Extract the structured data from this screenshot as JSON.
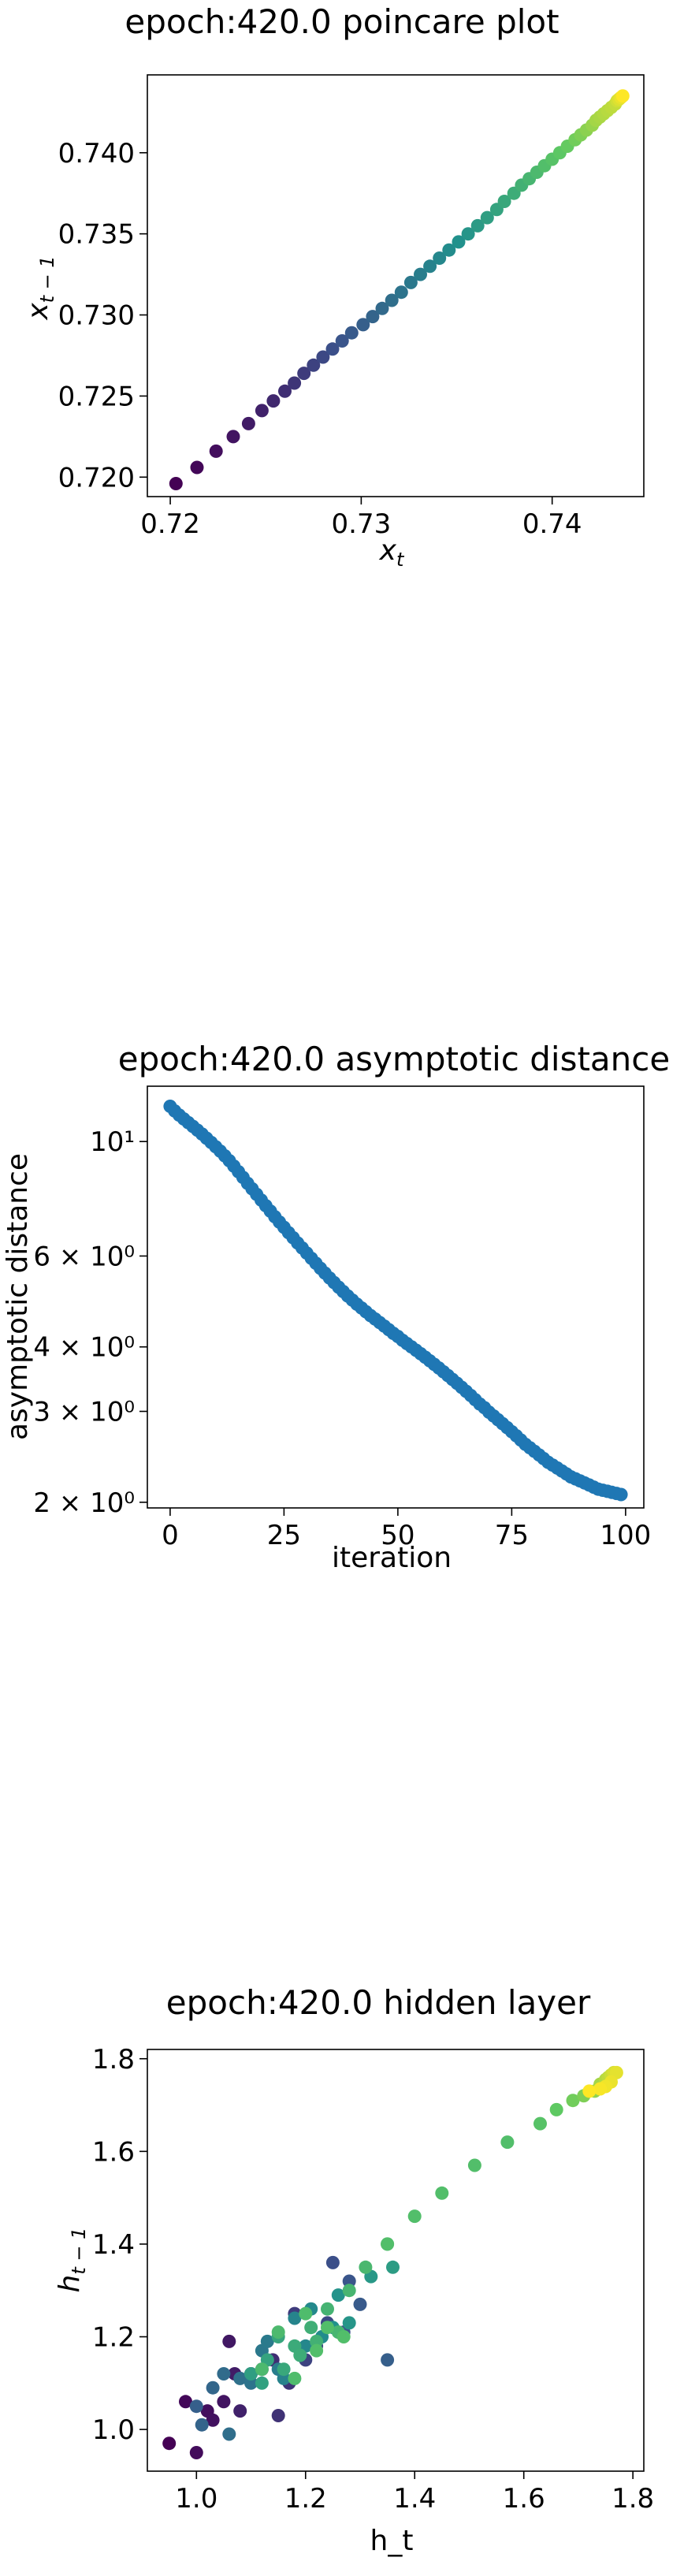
{
  "chart_data": [
    {
      "type": "scatter",
      "title": "epoch:420.0 poincare plot",
      "xlabel": "x_t",
      "ylabel": "x_{t-1}",
      "xlim": [
        0.7188,
        0.7448
      ],
      "ylim": [
        0.7188,
        0.7448
      ],
      "xticks": [
        0.72,
        0.73,
        0.74
      ],
      "xtick_labels": [
        "0.72",
        "0.73",
        "0.74"
      ],
      "yticks": [
        0.72,
        0.725,
        0.73,
        0.735,
        0.74
      ],
      "ytick_labels": [
        "0.720",
        "0.725",
        "0.730",
        "0.735",
        "0.740"
      ],
      "colormap": "viridis",
      "grid": false,
      "series": [
        {
          "x": [
            0.7203,
            0.7214,
            0.7224,
            0.7233,
            0.7241,
            0.7248,
            0.7254,
            0.726,
            0.7265,
            0.727,
            0.7275,
            0.728,
            0.7285,
            0.729,
            0.7295,
            0.7301,
            0.7306,
            0.7311,
            0.7316,
            0.7321,
            0.7326,
            0.7331,
            0.7336,
            0.7341,
            0.7346,
            0.7351,
            0.7356,
            0.7361,
            0.7366,
            0.7371,
            0.7375,
            0.738,
            0.7384,
            0.7388,
            0.7392,
            0.7396,
            0.74,
            0.7404,
            0.7408,
            0.7412,
            0.7415,
            0.7418,
            0.7421,
            0.7423,
            0.7425,
            0.7427,
            0.7429,
            0.7431,
            0.7433,
            0.7434,
            0.7435,
            0.7436,
            0.7437
          ],
          "y": [
            0.7196,
            0.7206,
            0.7216,
            0.7225,
            0.7233,
            0.7241,
            0.7247,
            0.7253,
            0.7258,
            0.7264,
            0.7269,
            0.7274,
            0.7279,
            0.7284,
            0.7289,
            0.7294,
            0.7299,
            0.7304,
            0.7309,
            0.7314,
            0.732,
            0.7325,
            0.733,
            0.7335,
            0.734,
            0.7345,
            0.735,
            0.7355,
            0.736,
            0.7365,
            0.737,
            0.7375,
            0.738,
            0.7384,
            0.7388,
            0.7392,
            0.7396,
            0.74,
            0.7404,
            0.7408,
            0.7411,
            0.7414,
            0.7417,
            0.742,
            0.7422,
            0.7424,
            0.7426,
            0.7428,
            0.743,
            0.7432,
            0.7433,
            0.7434,
            0.7435
          ],
          "color_values": [
            0.0,
            0.02,
            0.04,
            0.06,
            0.08,
            0.1,
            0.12,
            0.14,
            0.16,
            0.18,
            0.2,
            0.22,
            0.24,
            0.26,
            0.28,
            0.3,
            0.32,
            0.34,
            0.36,
            0.38,
            0.4,
            0.42,
            0.44,
            0.46,
            0.48,
            0.5,
            0.52,
            0.54,
            0.56,
            0.58,
            0.6,
            0.62,
            0.64,
            0.66,
            0.68,
            0.7,
            0.72,
            0.74,
            0.76,
            0.78,
            0.8,
            0.82,
            0.84,
            0.86,
            0.87,
            0.88,
            0.89,
            0.9,
            0.91,
            0.93,
            0.95,
            0.97,
            1.0
          ]
        }
      ]
    },
    {
      "type": "scatter",
      "title": "epoch:420.0 asymptotic distance",
      "xlabel": "iteration",
      "ylabel": "asymptotic distance",
      "xlim": [
        -5,
        104
      ],
      "ylim": [
        1.95,
        12.8
      ],
      "yscale": "log",
      "xticks": [
        0,
        25,
        50,
        75,
        100
      ],
      "xtick_labels": [
        "0",
        "25",
        "50",
        "75",
        "100"
      ],
      "yticks": [
        2,
        3,
        4,
        6,
        10
      ],
      "ytick_labels": [
        "2 × 10⁰",
        "3 × 10⁰",
        "4 × 10⁰",
        "6 × 10⁰",
        "10¹"
      ],
      "color": "#1f77b4",
      "grid": false,
      "series": [
        {
          "x": [
            0,
            1,
            2,
            3,
            4,
            5,
            6,
            7,
            8,
            9,
            10,
            11,
            12,
            13,
            14,
            15,
            16,
            17,
            18,
            19,
            20,
            21,
            22,
            23,
            24,
            25,
            26,
            27,
            28,
            29,
            30,
            31,
            32,
            33,
            34,
            35,
            36,
            37,
            38,
            39,
            40,
            41,
            42,
            43,
            44,
            45,
            46,
            47,
            48,
            49,
            50,
            51,
            52,
            53,
            54,
            55,
            56,
            57,
            58,
            59,
            60,
            61,
            62,
            63,
            64,
            65,
            66,
            67,
            68,
            69,
            70,
            71,
            72,
            73,
            74,
            75,
            76,
            77,
            78,
            79,
            80,
            81,
            82,
            83,
            84,
            85,
            86,
            87,
            88,
            89,
            90,
            91,
            92,
            93,
            94,
            95,
            96,
            97,
            98,
            99
          ],
          "y": [
            11.7,
            11.46,
            11.25,
            11.06,
            10.88,
            10.7,
            10.52,
            10.34,
            10.15,
            9.96,
            9.77,
            9.58,
            9.38,
            9.18,
            8.96,
            8.74,
            8.52,
            8.3,
            8.1,
            7.9,
            7.7,
            7.51,
            7.33,
            7.15,
            6.98,
            6.82,
            6.66,
            6.51,
            6.36,
            6.22,
            6.08,
            5.94,
            5.81,
            5.68,
            5.56,
            5.44,
            5.33,
            5.22,
            5.12,
            5.02,
            4.93,
            4.84,
            4.76,
            4.68,
            4.6,
            4.53,
            4.46,
            4.39,
            4.32,
            4.25,
            4.19,
            4.12,
            4.06,
            4.0,
            3.94,
            3.88,
            3.82,
            3.76,
            3.7,
            3.64,
            3.58,
            3.52,
            3.46,
            3.4,
            3.34,
            3.28,
            3.22,
            3.16,
            3.1,
            3.05,
            2.99,
            2.94,
            2.89,
            2.84,
            2.79,
            2.74,
            2.69,
            2.64,
            2.59,
            2.55,
            2.51,
            2.47,
            2.43,
            2.39,
            2.36,
            2.33,
            2.3,
            2.27,
            2.24,
            2.22,
            2.2,
            2.18,
            2.16,
            2.14,
            2.12,
            2.11,
            2.1,
            2.09,
            2.08,
            2.07
          ]
        }
      ]
    },
    {
      "type": "scatter",
      "title": "epoch:420.0 hidden layer",
      "xlabel": "h_t",
      "ylabel": "h_{t-1}",
      "xlim": [
        0.91,
        1.82
      ],
      "ylim": [
        0.91,
        1.82
      ],
      "xticks": [
        1.0,
        1.2,
        1.4,
        1.6,
        1.8
      ],
      "xtick_labels": [
        "1.0",
        "1.2",
        "1.4",
        "1.6",
        "1.8"
      ],
      "yticks": [
        1.0,
        1.2,
        1.4,
        1.6,
        1.8
      ],
      "ytick_labels": [
        "1.0",
        "1.2",
        "1.4",
        "1.6",
        "1.8"
      ],
      "colormap": "viridis",
      "grid": false,
      "series": [
        {
          "x": [
            0.95,
            0.98,
            1.0,
            1.02,
            1.03,
            1.05,
            1.06,
            1.07,
            1.08,
            1.1,
            1.12,
            1.14,
            1.15,
            1.17,
            1.18,
            1.2,
            1.22,
            1.24,
            1.25,
            1.27,
            1.28,
            1.3,
            1.35,
            1.0,
            1.01,
            1.03,
            1.05,
            1.06,
            1.08,
            1.1,
            1.12,
            1.13,
            1.15,
            1.16,
            1.18,
            1.2,
            1.21,
            1.23,
            1.25,
            1.26,
            1.28,
            1.32,
            1.36,
            1.1,
            1.12,
            1.13,
            1.15,
            1.16,
            1.18,
            1.19,
            1.21,
            1.22,
            1.24,
            1.26,
            1.28,
            1.31,
            1.35,
            1.12,
            1.15,
            1.18,
            1.2,
            1.22,
            1.24,
            1.27,
            1.35,
            1.4,
            1.45,
            1.51,
            1.57,
            1.63,
            1.66,
            1.69,
            1.71,
            1.73,
            1.74,
            1.75,
            1.755,
            1.76,
            1.765,
            1.77,
            1.76,
            1.75,
            1.74,
            1.72
          ],
          "y": [
            0.97,
            1.06,
            0.95,
            1.04,
            1.02,
            1.06,
            1.19,
            1.12,
            1.04,
            1.12,
            1.13,
            1.15,
            1.03,
            1.1,
            1.25,
            1.15,
            1.18,
            1.23,
            1.36,
            1.21,
            1.32,
            1.27,
            1.15,
            1.05,
            1.01,
            1.09,
            1.12,
            0.99,
            1.11,
            1.1,
            1.17,
            1.19,
            1.13,
            1.11,
            1.24,
            1.18,
            1.26,
            1.2,
            1.22,
            1.29,
            1.23,
            1.33,
            1.35,
            1.12,
            1.1,
            1.15,
            1.2,
            1.13,
            1.18,
            1.16,
            1.22,
            1.19,
            1.26,
            1.21,
            1.3,
            1.35,
            1.4,
            1.13,
            1.21,
            1.11,
            1.25,
            1.17,
            1.22,
            1.2,
            1.4,
            1.46,
            1.51,
            1.57,
            1.62,
            1.66,
            1.69,
            1.71,
            1.72,
            1.73,
            1.745,
            1.755,
            1.76,
            1.765,
            1.77,
            1.77,
            1.75,
            1.74,
            1.735,
            1.73
          ],
          "color_values": [
            0.0,
            0.02,
            0.03,
            0.04,
            0.05,
            0.06,
            0.07,
            0.08,
            0.1,
            0.12,
            0.13,
            0.14,
            0.15,
            0.16,
            0.18,
            0.2,
            0.21,
            0.22,
            0.24,
            0.25,
            0.26,
            0.28,
            0.3,
            0.3,
            0.32,
            0.33,
            0.35,
            0.36,
            0.37,
            0.38,
            0.4,
            0.41,
            0.42,
            0.44,
            0.45,
            0.46,
            0.47,
            0.48,
            0.5,
            0.51,
            0.52,
            0.53,
            0.55,
            0.56,
            0.57,
            0.58,
            0.59,
            0.6,
            0.61,
            0.62,
            0.63,
            0.64,
            0.65,
            0.66,
            0.66,
            0.67,
            0.67,
            0.68,
            0.68,
            0.69,
            0.69,
            0.7,
            0.7,
            0.7,
            0.7,
            0.7,
            0.7,
            0.7,
            0.7,
            0.72,
            0.75,
            0.78,
            0.8,
            0.83,
            0.86,
            0.88,
            0.9,
            0.92,
            0.94,
            0.96,
            0.97,
            0.98,
            0.99,
            1.0
          ]
        }
      ]
    }
  ]
}
